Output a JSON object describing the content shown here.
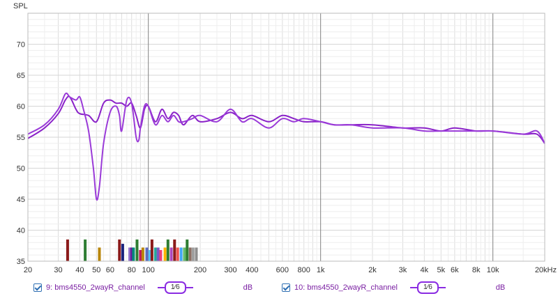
{
  "chart_data": {
    "type": "line",
    "ylabel": "SPL",
    "xscale": "log",
    "xlim": [
      20,
      20000
    ],
    "ylim": [
      35,
      75
    ],
    "yticks": [
      35,
      40,
      45,
      50,
      55,
      60,
      65,
      70
    ],
    "ytick_labels": [
      "35",
      "40",
      "45",
      "50",
      "55",
      "60",
      "65",
      "70"
    ],
    "xticks": [
      20,
      30,
      40,
      50,
      60,
      80,
      100,
      200,
      300,
      400,
      600,
      800,
      1000,
      2000,
      3000,
      4000,
      5000,
      6000,
      8000,
      10000,
      20000
    ],
    "xtick_labels": [
      "20",
      "30",
      "40",
      "50",
      "60",
      "80",
      "100",
      "200",
      "300",
      "400",
      "600",
      "800",
      "1k",
      "2k",
      "3k",
      "4k",
      "5k",
      "6k",
      "8k",
      "10k",
      "20kHz"
    ],
    "grid": true,
    "series": [
      {
        "name": "9: bms4550_2wayR_channel",
        "color": "#8a22c8",
        "x": [
          20,
          25,
          30,
          33,
          35,
          38,
          40,
          45,
          50,
          55,
          60,
          65,
          70,
          75,
          80,
          85,
          90,
          95,
          100,
          110,
          120,
          130,
          140,
          150,
          160,
          180,
          200,
          250,
          300,
          350,
          400,
          500,
          600,
          700,
          800,
          1000,
          1200,
          1500,
          2000,
          3000,
          4000,
          5000,
          6000,
          8000,
          10000,
          15000,
          18000,
          20000
        ],
        "y": [
          54.8,
          56.5,
          58.8,
          61.0,
          61.5,
          59.5,
          58.8,
          58.5,
          57.5,
          60.5,
          61.0,
          60.5,
          60.5,
          60.0,
          60.5,
          58.5,
          56.5,
          59.5,
          60.0,
          57.5,
          59.5,
          58.0,
          59.0,
          58.5,
          57.0,
          58.5,
          57.5,
          58.0,
          59.0,
          58.0,
          58.5,
          57.5,
          58.5,
          58.0,
          57.5,
          57.5,
          57.0,
          57.0,
          57.0,
          56.5,
          56.5,
          56.0,
          56.5,
          56.0,
          56.0,
          55.5,
          55.5,
          54.0
        ]
      },
      {
        "name": "10: bms4550_2wayR_channel",
        "color": "#9a3ad8",
        "x": [
          20,
          25,
          30,
          33,
          35,
          38,
          40,
          42,
          45,
          48,
          50,
          52,
          55,
          60,
          65,
          68,
          70,
          75,
          80,
          85,
          88,
          90,
          95,
          100,
          110,
          120,
          130,
          140,
          150,
          160,
          180,
          200,
          250,
          300,
          350,
          400,
          500,
          600,
          700,
          800,
          1000,
          1200,
          1500,
          2000,
          3000,
          4000,
          5000,
          6000,
          8000,
          10000,
          15000,
          18000,
          20000
        ],
        "y": [
          55.5,
          57.0,
          59.5,
          62.0,
          61.5,
          61.0,
          61.5,
          59.5,
          56.0,
          50.0,
          45.0,
          47.0,
          54.0,
          59.0,
          60.0,
          58.5,
          56.0,
          61.0,
          60.5,
          55.0,
          54.5,
          56.5,
          60.0,
          60.0,
          57.0,
          58.5,
          57.5,
          58.5,
          57.5,
          57.5,
          58.0,
          58.5,
          57.5,
          59.5,
          57.5,
          58.0,
          56.5,
          58.0,
          57.5,
          58.0,
          57.5,
          57.0,
          57.0,
          56.5,
          56.5,
          56.0,
          56.0,
          56.0,
          56.0,
          56.0,
          55.5,
          56.0,
          54.0
        ]
      }
    ],
    "markers": [
      {
        "x": 34,
        "level": 38.5,
        "color": "#8b1a1a"
      },
      {
        "x": 43,
        "level": 38.5,
        "color": "#2e7d32"
      },
      {
        "x": 52,
        "level": 37.2,
        "color": "#b8860b"
      },
      {
        "x": 68,
        "level": 38.5,
        "color": "#8b1a1a"
      },
      {
        "x": 71,
        "level": 37.8,
        "color": "#1a237e"
      },
      {
        "x": 78,
        "level": 37.2,
        "color": "#9575cd"
      },
      {
        "x": 80,
        "level": 37.2,
        "color": "#6a1b9a"
      },
      {
        "x": 82,
        "level": 37.2,
        "color": "#00897b"
      },
      {
        "x": 86,
        "level": 38.5,
        "color": "#2e7d32"
      },
      {
        "x": 90,
        "level": 36.8,
        "color": "#c2185b"
      },
      {
        "x": 93,
        "level": 37.2,
        "color": "#b8860b"
      },
      {
        "x": 98,
        "level": 37.2,
        "color": "#5c6bc0"
      },
      {
        "x": 102,
        "level": 36.8,
        "color": "#4fc3f7"
      },
      {
        "x": 105,
        "level": 38.5,
        "color": "#8b1a1a"
      },
      {
        "x": 110,
        "level": 37.2,
        "color": "#26a69a"
      },
      {
        "x": 114,
        "level": 37.2,
        "color": "#7e57c2"
      },
      {
        "x": 118,
        "level": 36.8,
        "color": "#ec407a"
      },
      {
        "x": 125,
        "level": 37.2,
        "color": "#ffb300"
      },
      {
        "x": 130,
        "level": 38.5,
        "color": "#2e7d32"
      },
      {
        "x": 136,
        "level": 37.2,
        "color": "#ab47bc"
      },
      {
        "x": 142,
        "level": 38.5,
        "color": "#8b1a1a"
      },
      {
        "x": 148,
        "level": 37.2,
        "color": "#ef5350"
      },
      {
        "x": 155,
        "level": 37.2,
        "color": "#42a5f5"
      },
      {
        "x": 162,
        "level": 37.2,
        "color": "#66bb6a"
      },
      {
        "x": 168,
        "level": 38.5,
        "color": "#2e7d32"
      },
      {
        "x": 175,
        "level": 37.2,
        "color": "#8d6e63"
      },
      {
        "x": 182,
        "level": 37.2,
        "color": "#9e9e9e"
      },
      {
        "x": 190,
        "level": 37.2,
        "color": "#8e8e8e"
      }
    ]
  },
  "legend": [
    {
      "name": "9: bms4550_2wayR_channel",
      "smoothing": "1⁄6",
      "unit": "dB"
    },
    {
      "name": "10: bms4550_2wayR_channel",
      "smoothing": "1⁄6",
      "unit": "dB"
    }
  ]
}
